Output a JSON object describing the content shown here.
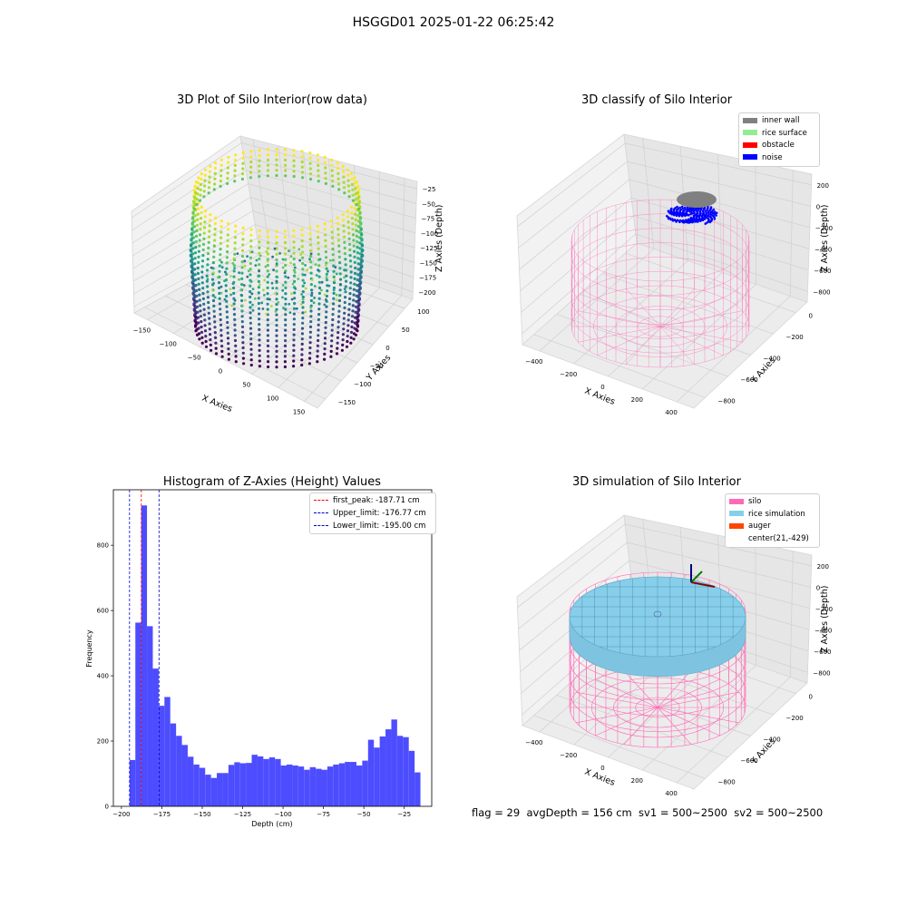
{
  "suptitle": "HSGGD01 2025-01-22 06:25:42",
  "status_line": {
    "text": "flag = 29  avgDepth = 156 cm  sv1 = 500~2500  sv2 = 500~2500"
  },
  "colors": {
    "histogram_bar": "#4d4dff",
    "first_peak_line": "#ff0000",
    "limit_lines": "#0000cc",
    "inner_wall": "#808080",
    "rice_surface": "#90ee90",
    "obstacle": "#ff0000",
    "noise": "#0000ff",
    "silo": "#ff69b4",
    "rice_simulation": "#87ceeb",
    "auger": "#ff4500"
  },
  "chart_data": [
    {
      "type": "scatter",
      "title": "3D Plot of Silo Interior(row data)",
      "xlabel": "X Axies",
      "ylabel": "Y Axies",
      "zlabel": "Z Axies (Depth)",
      "x_ticks": [
        "−150",
        "−100",
        "−50",
        "0",
        "50",
        "100",
        "150"
      ],
      "y_ticks": [
        "100",
        "50",
        "0",
        "−50",
        "−100",
        "−150"
      ],
      "z_ticks": [
        "−25",
        "−50",
        "−75",
        "−100",
        "−125",
        "−150",
        "−175",
        "−200"
      ],
      "xlim": [
        -160,
        160
      ],
      "ylim": [
        -160,
        110
      ],
      "zlim": [
        -210,
        -10
      ],
      "colormap": "viridis"
    },
    {
      "type": "scatter",
      "title": "3D classify of Silo Interior",
      "xlabel": "X Axies",
      "ylabel": "Y Axies",
      "zlabel": "Z Axies (Depth)",
      "x_ticks": [
        "−400",
        "−200",
        "0",
        "200",
        "400"
      ],
      "y_ticks": [
        "0",
        "−200",
        "−400",
        "−600",
        "−800"
      ],
      "z_ticks": [
        "200",
        "0",
        "−200",
        "−400",
        "−600",
        "−800"
      ],
      "legend_position": "top-right",
      "legend": [
        {
          "name": "inner wall",
          "color": "#808080"
        },
        {
          "name": "rice surface",
          "color": "#90ee90"
        },
        {
          "name": "obstacle",
          "color": "#ff0000"
        },
        {
          "name": "noise",
          "color": "#0000ff"
        }
      ]
    },
    {
      "type": "bar",
      "title": "Histogram of Z-Axies (Height) Values",
      "xlabel": "Depth (cm)",
      "ylabel": "Frequency",
      "xlim": [
        -205,
        -8
      ],
      "ylim": [
        0,
        970
      ],
      "bin_start": -195,
      "bin_width": 3.6,
      "x_ticks": [
        -200,
        -175,
        -150,
        -125,
        -100,
        -75,
        -50,
        -25
      ],
      "x_tick_labels": [
        "−200",
        "−175",
        "−150",
        "−125",
        "−100",
        "−75",
        "−50",
        "−25"
      ],
      "y_ticks": [
        0,
        200,
        400,
        600,
        800
      ],
      "y_tick_labels": [
        "0",
        "200",
        "400",
        "600",
        "800"
      ],
      "values": [
        142,
        563,
        922,
        552,
        422,
        308,
        335,
        254,
        216,
        188,
        152,
        128,
        118,
        97,
        87,
        102,
        102,
        127,
        135,
        132,
        133,
        158,
        153,
        145,
        150,
        145,
        125,
        128,
        125,
        122,
        112,
        120,
        115,
        112,
        122,
        128,
        132,
        136,
        136,
        125,
        140,
        204,
        180,
        214,
        236,
        266,
        216,
        212,
        170,
        104
      ],
      "vlines": [
        {
          "label": "first_peak: -187.71 cm",
          "x": -187.71,
          "color": "#ff0000"
        },
        {
          "label": "Upper_limit: -176.77 cm",
          "x": -176.77,
          "color": "#0000cc"
        },
        {
          "label": "Lower_limit: -195.00 cm",
          "x": -195.0,
          "color": "#0000cc"
        }
      ],
      "legend_position": "top-right"
    },
    {
      "type": "scatter",
      "title": "3D simulation of Silo Interior",
      "xlabel": "X Axies",
      "ylabel": "Y Axies",
      "zlabel": "Z Axies (Depth)",
      "x_ticks": [
        "−400",
        "−200",
        "0",
        "200",
        "400"
      ],
      "y_ticks": [
        "0",
        "−200",
        "−400",
        "−600",
        "−800"
      ],
      "z_ticks": [
        "200",
        "0",
        "−200",
        "−400",
        "−600",
        "−800"
      ],
      "legend_position": "top-right",
      "legend": [
        {
          "name": "silo",
          "color": "#ff69b4"
        },
        {
          "name": "rice simulation",
          "color": "#87ceeb"
        },
        {
          "name": "auger",
          "color": "#ff4500"
        },
        {
          "name": "center(21,-429)",
          "color": ""
        }
      ]
    }
  ]
}
